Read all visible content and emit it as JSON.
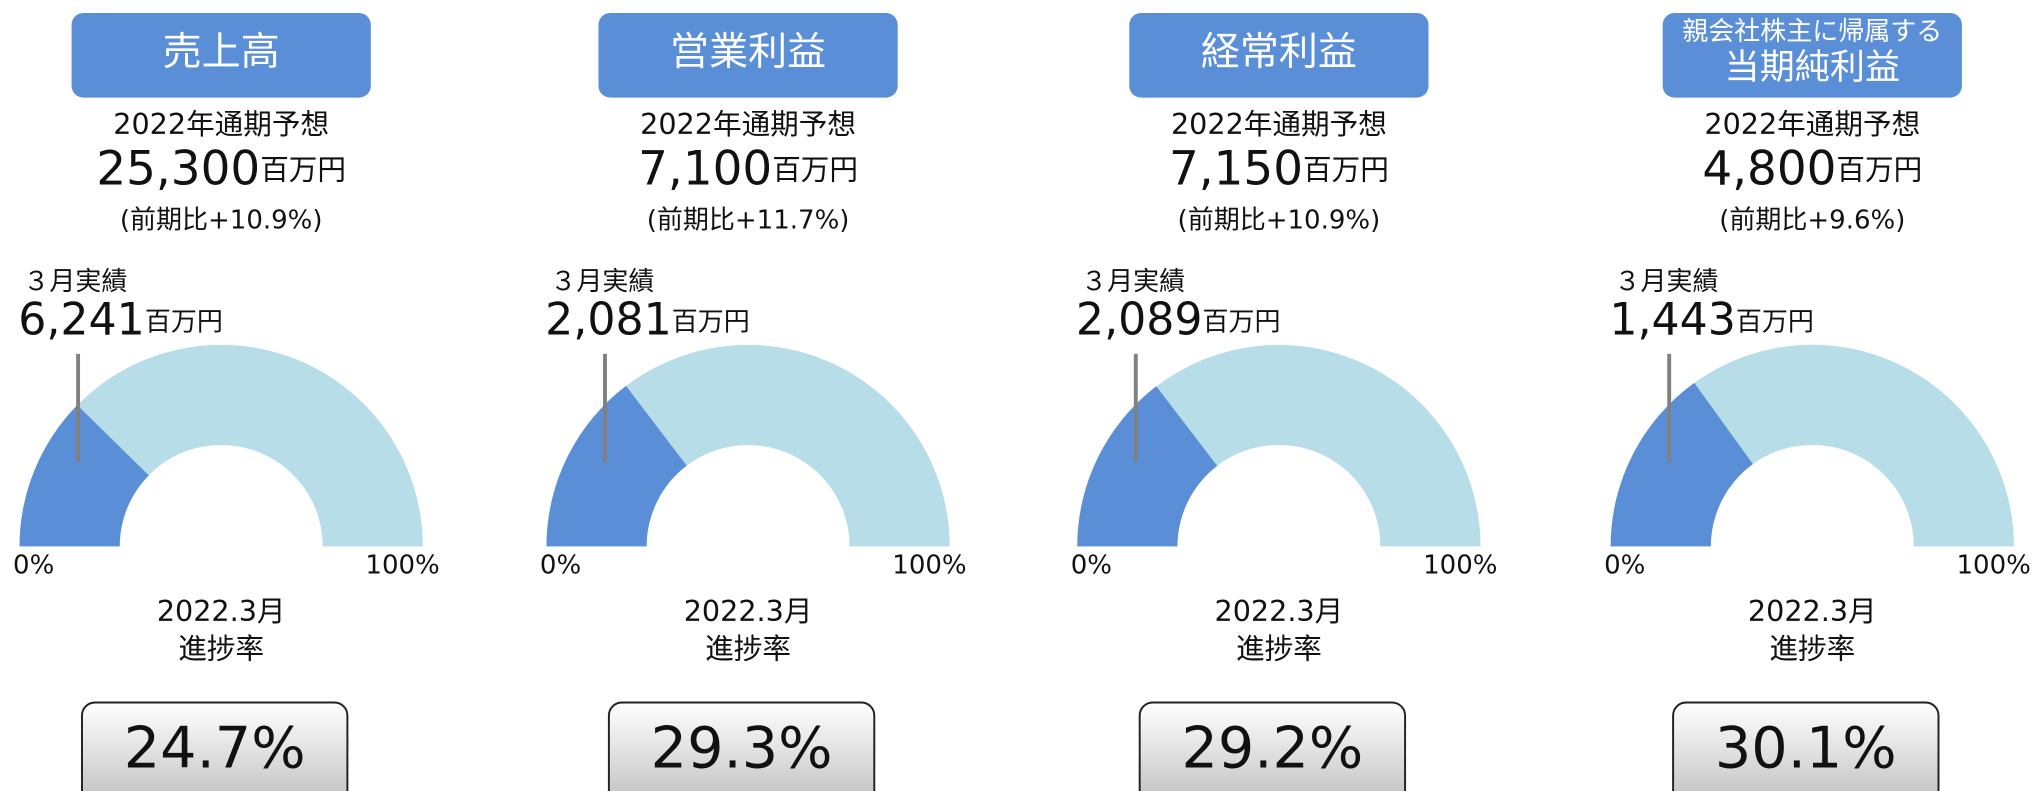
{
  "chart_data": [
    {
      "type": "gauge",
      "title": [
        "売上高"
      ],
      "subtitle": "2022年通期予想",
      "forecast": "25,300",
      "unit": "百万円",
      "change": "(前期比+10.9%)",
      "actual_label": "３月実績",
      "actual": "6,241",
      "actual_unit": "百万円",
      "period": "2022.3月",
      "value_name": "進捗率",
      "values": [
        24.7
      ],
      "value_labels": [
        "24.7%"
      ],
      "ylim": [
        0,
        100
      ],
      "yticks": [
        {
          "value": 0,
          "label": "0%"
        },
        {
          "value": 100,
          "label": "100%"
        }
      ],
      "color": "#5a8fd8",
      "track_color": "#b7dde8"
    },
    {
      "type": "gauge",
      "title": [
        "営業利益"
      ],
      "subtitle": "2022年通期予想",
      "forecast": "7,100",
      "unit": "百万円",
      "change": "(前期比+11.7%)",
      "actual_label": "３月実績",
      "actual": "2,081",
      "actual_unit": "百万円",
      "period": "2022.3月",
      "value_name": "進捗率",
      "values": [
        29.3
      ],
      "value_labels": [
        "29.3%"
      ],
      "ylim": [
        0,
        100
      ],
      "yticks": [
        {
          "value": 0,
          "label": "0%"
        },
        {
          "value": 100,
          "label": "100%"
        }
      ],
      "color": "#5a8fd8",
      "track_color": "#b7dde8"
    },
    {
      "type": "gauge",
      "title": [
        "経常利益"
      ],
      "subtitle": "2022年通期予想",
      "forecast": "7,150",
      "unit": "百万円",
      "change": "(前期比+10.9%)",
      "actual_label": "３月実績",
      "actual": "2,089",
      "actual_unit": "百万円",
      "period": "2022.3月",
      "value_name": "進捗率",
      "values": [
        29.2
      ],
      "value_labels": [
        "29.2%"
      ],
      "ylim": [
        0,
        100
      ],
      "yticks": [
        {
          "value": 0,
          "label": "0%"
        },
        {
          "value": 100,
          "label": "100%"
        }
      ],
      "color": "#5a8fd8",
      "track_color": "#b7dde8"
    },
    {
      "type": "gauge",
      "title": [
        "親会社株主に帰属する",
        "当期純利益"
      ],
      "subtitle": "2022年通期予想",
      "forecast": "4,800",
      "unit": "百万円",
      "change": "(前期比+9.6%)",
      "actual_label": "３月実績",
      "actual": "1,443",
      "actual_unit": "百万円",
      "period": "2022.3月",
      "value_name": "進捗率",
      "values": [
        30.1
      ],
      "value_labels": [
        "30.1%"
      ],
      "ylim": [
        0,
        100
      ],
      "yticks": [
        {
          "value": 0,
          "label": "0%"
        },
        {
          "value": 100,
          "label": "100%"
        }
      ],
      "color": "#5a8fd8",
      "track_color": "#b7dde8"
    }
  ]
}
